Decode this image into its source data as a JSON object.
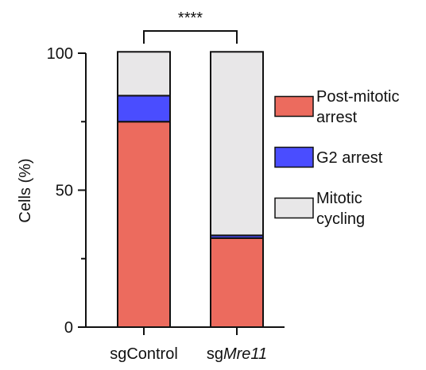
{
  "chart_data": {
    "type": "bar",
    "stacked": true,
    "categories": [
      {
        "prefix": "sg",
        "name": "Control",
        "italic": false
      },
      {
        "prefix": "sg",
        "name": "Mre11",
        "italic": true
      }
    ],
    "series": [
      {
        "name": "Post-mitotic arrest",
        "name_lines": [
          "Post-mitotic",
          "arrest"
        ],
        "color": "#EC6B5E",
        "values": [
          75,
          32.5
        ]
      },
      {
        "name": "G2 arrest",
        "name_lines": [
          "G2 arrest"
        ],
        "color": "#4A4DFF",
        "values": [
          9.5,
          1
        ]
      },
      {
        "name": "Mitotic cycling",
        "name_lines": [
          "Mitotic",
          "cycling"
        ],
        "color": "#E8E7E8",
        "values": [
          16,
          67
        ]
      }
    ],
    "ylabel": "Cells (%)",
    "ylim": [
      0,
      100
    ],
    "yticks_major": [
      0,
      50,
      100
    ],
    "yticks_minor": [
      25,
      75
    ],
    "legend_position": "right",
    "annotation": {
      "text": "****",
      "between": [
        0,
        1
      ]
    },
    "grid": false
  }
}
